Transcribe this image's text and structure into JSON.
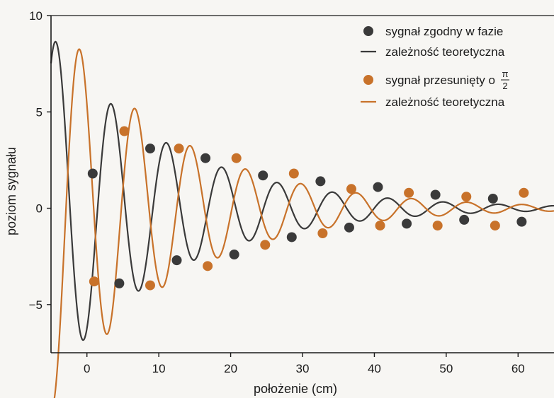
{
  "chart_data": {
    "type": "scatter",
    "xlabel": "położenie  (cm)",
    "ylabel": "poziom sygnału",
    "xlim": [
      -5,
      65
    ],
    "ylim": [
      -7.5,
      10
    ],
    "xticks": [
      0,
      10,
      20,
      30,
      40,
      50,
      60
    ],
    "xtick_labels": [
      "0",
      "10",
      "20",
      "30",
      "40",
      "50",
      "60"
    ],
    "yticks": [
      -5,
      0,
      5,
      10
    ],
    "ytick_labels": [
      "−5",
      "0",
      "5",
      "10"
    ],
    "grid": false,
    "legend_position": "top-right",
    "colors": {
      "in_phase": "#3a3a3a",
      "shifted": "#c8722a",
      "axis": "#1a1a1a"
    },
    "series": [
      {
        "name": "sygnał zgodny w fazie",
        "kind": "points",
        "color": "#3a3a3a",
        "points": [
          [
            0.8,
            1.8
          ],
          [
            4.5,
            -3.9
          ],
          [
            8.8,
            3.1
          ],
          [
            12.5,
            -2.7
          ],
          [
            16.5,
            2.6
          ],
          [
            20.5,
            -2.4
          ],
          [
            24.5,
            1.7
          ],
          [
            28.5,
            -1.5
          ],
          [
            32.5,
            1.4
          ],
          [
            36.5,
            -1.0
          ],
          [
            40.5,
            1.1
          ],
          [
            44.5,
            -0.8
          ],
          [
            48.5,
            0.7
          ],
          [
            52.5,
            -0.6
          ],
          [
            56.5,
            0.5
          ],
          [
            60.5,
            -0.7
          ]
        ]
      },
      {
        "name": "zależność teoretyczna",
        "kind": "curve",
        "color": "#3a3a3a",
        "model": {
          "A": 9.0,
          "tau": 16.5,
          "period": 7.7,
          "x0": 2.1,
          "sin_phase": 0.5,
          "x_start": -5,
          "x_end": 65
        }
      },
      {
        "name": "sygnał przesunięty o",
        "name_suffix_fraction": {
          "numerator": "π",
          "denominator": "2"
        },
        "kind": "points",
        "color": "#c8722a",
        "points": [
          [
            1.0,
            -3.8
          ],
          [
            5.2,
            4.0
          ],
          [
            8.8,
            -4.0
          ],
          [
            12.8,
            3.1
          ],
          [
            16.8,
            -3.0
          ],
          [
            20.8,
            2.6
          ],
          [
            24.8,
            -1.9
          ],
          [
            28.8,
            1.8
          ],
          [
            32.8,
            -1.3
          ],
          [
            36.8,
            1.0
          ],
          [
            40.8,
            -0.9
          ],
          [
            44.8,
            0.8
          ],
          [
            48.8,
            -0.9
          ],
          [
            52.8,
            0.6
          ],
          [
            56.8,
            -0.9
          ],
          [
            60.8,
            0.8
          ]
        ]
      },
      {
        "name": "zależność teoretyczna",
        "kind": "curve",
        "color": "#c8722a",
        "model": {
          "A": 10.5,
          "tau": 16.5,
          "period": 7.7,
          "x0": -2.3,
          "sin_phase": 0.5,
          "x_start": -5,
          "x_end": 65
        }
      }
    ]
  }
}
